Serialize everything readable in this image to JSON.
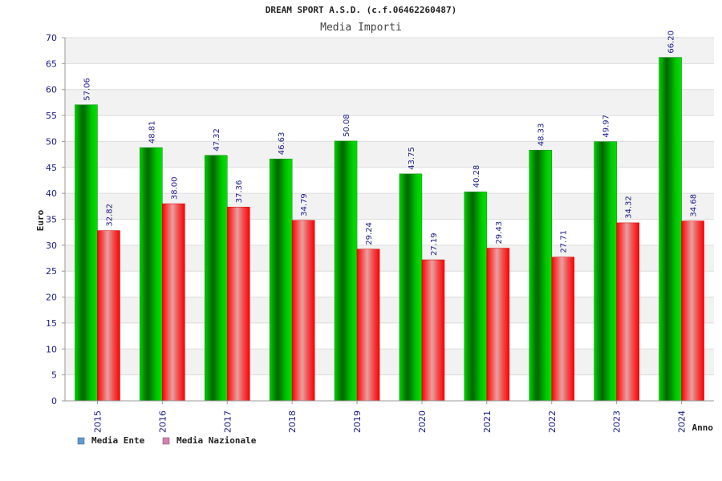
{
  "chart_data": {
    "type": "bar",
    "title": "DREAM SPORT A.S.D. (c.f.06462260487)",
    "subtitle": "Media Importi",
    "xlabel": "Anno",
    "ylabel": "Euro",
    "ylim": [
      0,
      70
    ],
    "ytick_step": 5,
    "grid": true,
    "legend_position": "bottom-left",
    "categories": [
      "2015",
      "2016",
      "2017",
      "2018",
      "2019",
      "2020",
      "2021",
      "2022",
      "2023",
      "2024"
    ],
    "series": [
      {
        "name": "Media Ente",
        "color": "#00c000",
        "legend_color": "#5b9bd5",
        "values": [
          57.06,
          48.81,
          47.32,
          46.63,
          50.08,
          43.75,
          40.28,
          48.33,
          49.97,
          66.2
        ],
        "labels": [
          "57.06",
          "48.81",
          "47.32",
          "46.63",
          "50.08",
          "43.75",
          "40.28",
          "48.33",
          "49.97",
          "66.20"
        ]
      },
      {
        "name": "Media Nazionale",
        "color": "#ff1a1a",
        "legend_color": "#d97fb5",
        "values": [
          32.82,
          38.0,
          37.36,
          34.79,
          29.24,
          27.19,
          29.43,
          27.71,
          34.32,
          34.68
        ],
        "labels": [
          "32.82",
          "38.00",
          "37.36",
          "34.79",
          "29.24",
          "27.19",
          "29.43",
          "27.71",
          "34.32",
          "34.68"
        ]
      }
    ]
  }
}
